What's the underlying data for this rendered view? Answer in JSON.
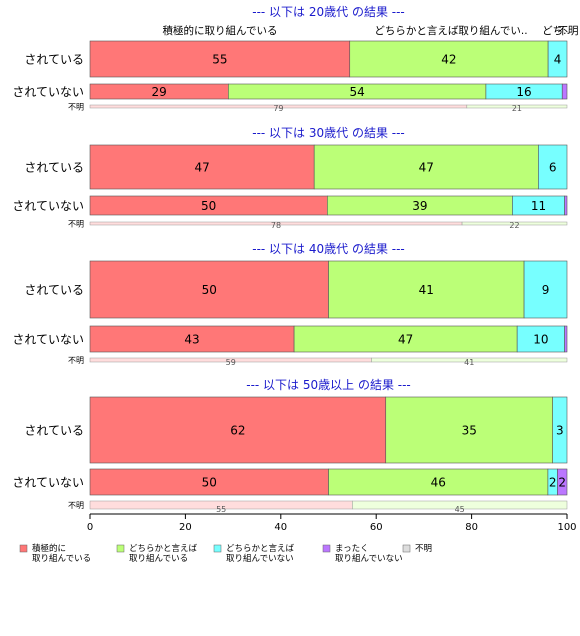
{
  "chart_data": {
    "type": "bar",
    "orientation": "horizontal",
    "stacked": true,
    "xlim": [
      0,
      100
    ],
    "xticks": [
      0,
      20,
      40,
      60,
      80,
      100
    ],
    "legend_position": "bottom",
    "top_labels": [
      "積極的に取り組んでいる",
      "どちらかと言えば取り組んでい..",
      "どち..",
      "不明"
    ],
    "legend": [
      {
        "lines": [
          "積極的に",
          "取り組んでいる"
        ],
        "color": "#ff7777"
      },
      {
        "lines": [
          "どちらかと言えば",
          "取り組んでいる"
        ],
        "color": "#bbff77"
      },
      {
        "lines": [
          "どちらかと言えば",
          "取り組んでいない"
        ],
        "color": "#77ffff"
      },
      {
        "lines": [
          "まったく",
          "取り組んでいない"
        ],
        "color": "#bb77ff"
      },
      {
        "lines": [
          "不明"
        ],
        "color": "#dddddd"
      }
    ],
    "groups": [
      {
        "title": "--- 以下は 20歳代 の結果 ---",
        "rows": [
          {
            "label": "されている",
            "size": "large",
            "values": [
              55,
              42,
              4,
              0
            ],
            "labels": [
              "55",
              "42",
              "4",
              ""
            ]
          },
          {
            "label": "されていない",
            "size": "large",
            "values": [
              29,
              54,
              16,
              1
            ],
            "labels": [
              "29",
              "54",
              "16",
              ""
            ]
          },
          {
            "label": "不明",
            "size": "small",
            "values": [
              79,
              21
            ],
            "labels": [
              "79",
              "21"
            ]
          }
        ]
      },
      {
        "title": "--- 以下は 30歳代 の結果 ---",
        "rows": [
          {
            "label": "されている",
            "size": "large",
            "values": [
              47,
              47,
              6,
              0
            ],
            "labels": [
              "47",
              "47",
              "6",
              ""
            ]
          },
          {
            "label": "されていない",
            "size": "large",
            "values": [
              50,
              39,
              11,
              0.5
            ],
            "labels": [
              "50",
              "39",
              "11",
              ""
            ]
          },
          {
            "label": "不明",
            "size": "small",
            "values": [
              78,
              22
            ],
            "labels": [
              "78",
              "22"
            ]
          }
        ]
      },
      {
        "title": "--- 以下は 40歳代 の結果 ---",
        "rows": [
          {
            "label": "されている",
            "size": "large",
            "values": [
              50,
              41,
              9,
              0
            ],
            "labels": [
              "50",
              "41",
              "9",
              ""
            ]
          },
          {
            "label": "されていない",
            "size": "large",
            "values": [
              43,
              47,
              10,
              0.5
            ],
            "labels": [
              "43",
              "47",
              "10",
              ""
            ]
          },
          {
            "label": "不明",
            "size": "small",
            "values": [
              59,
              41
            ],
            "labels": [
              "59",
              "41"
            ]
          }
        ]
      },
      {
        "title": "--- 以下は 50歳以上 の結果 ---",
        "rows": [
          {
            "label": "されている",
            "size": "large",
            "values": [
              62,
              35,
              3,
              0
            ],
            "labels": [
              "62",
              "35",
              "3",
              ""
            ]
          },
          {
            "label": "されていない",
            "size": "large",
            "values": [
              50,
              46,
              2,
              2
            ],
            "labels": [
              "50",
              "46",
              "2",
              "2"
            ]
          },
          {
            "label": "不明",
            "size": "small",
            "values": [
              55,
              45
            ],
            "labels": [
              "55",
              "45"
            ]
          }
        ]
      }
    ]
  }
}
